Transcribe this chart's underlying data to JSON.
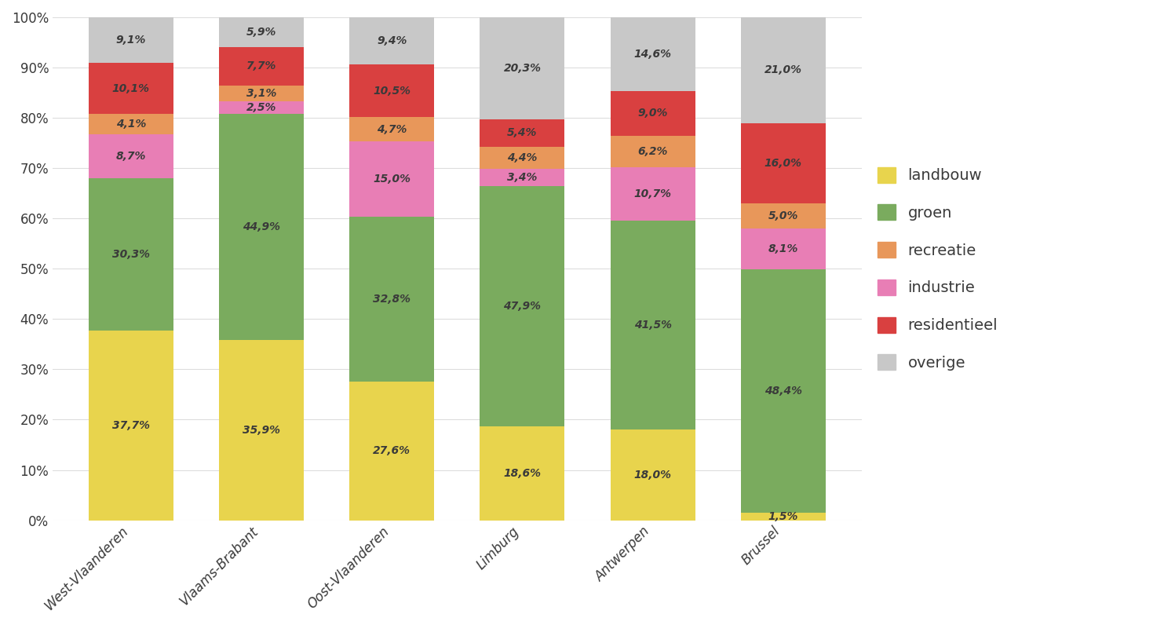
{
  "categories": [
    "West-Vlaanderen",
    "Vlaams-Brabant",
    "Oost-Vlaanderen",
    "Limburg",
    "Antwerpen",
    "Brussel"
  ],
  "series": {
    "landbouw": [
      37.7,
      35.9,
      27.6,
      18.6,
      18.0,
      1.5
    ],
    "groen": [
      30.3,
      44.9,
      32.8,
      47.9,
      41.5,
      48.4
    ],
    "industrie": [
      8.7,
      2.5,
      15.0,
      3.4,
      10.7,
      8.1
    ],
    "recreatie": [
      4.1,
      3.1,
      4.7,
      4.4,
      6.2,
      5.0
    ],
    "residentieel": [
      10.1,
      7.7,
      10.5,
      5.4,
      9.0,
      16.0
    ],
    "overige": [
      9.1,
      5.9,
      9.4,
      20.3,
      14.6,
      21.0
    ]
  },
  "colors": {
    "landbouw": "#e8d44d",
    "groen": "#7aab5e",
    "industrie": "#e87eb5",
    "recreatie": "#e8975a",
    "residentieel": "#d94040",
    "overige": "#c8c8c8"
  },
  "legend_labels": {
    "landbouw": "landbouw",
    "groen": "groen",
    "recreatie": "recreatie",
    "industrie": "industrie",
    "residentieel": "residentieel",
    "overige": "overige"
  },
  "stack_order": [
    "landbouw",
    "groen",
    "industrie",
    "recreatie",
    "residentieel",
    "overige"
  ],
  "legend_order": [
    "landbouw",
    "groen",
    "recreatie",
    "industrie",
    "residentieel",
    "overige"
  ],
  "bar_width": 0.65,
  "figsize": [
    14.97,
    7.96
  ],
  "dpi": 100,
  "background_color": "#ffffff",
  "grid_color": "#dddddd",
  "text_color": "#3a3a3a",
  "label_fontsize": 10,
  "axis_fontsize": 12,
  "legend_fontsize": 14
}
